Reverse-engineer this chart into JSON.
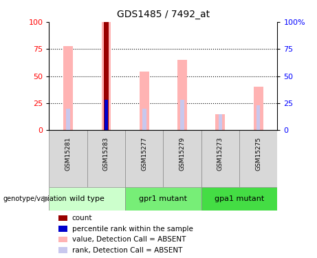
{
  "title": "GDS1485 / 7492_at",
  "samples": [
    "GSM15281",
    "GSM15283",
    "GSM15277",
    "GSM15279",
    "GSM15273",
    "GSM15275"
  ],
  "group_data": [
    {
      "name": "wild type",
      "indices": [
        0,
        1
      ],
      "color": "#ccffcc"
    },
    {
      "name": "gpr1 mutant",
      "indices": [
        2,
        3
      ],
      "color": "#66ff66"
    },
    {
      "name": "gpa1 mutant",
      "indices": [
        4,
        5
      ],
      "color": "#55ee55"
    }
  ],
  "value_bars": [
    78,
    100,
    54,
    65,
    15,
    40
  ],
  "rank_bars": [
    20,
    28,
    20,
    28,
    15,
    23
  ],
  "count_bar_idx": 1,
  "count_bar_value": 100,
  "percentile_rank_value": 28,
  "value_bar_color": "#ffb3b3",
  "rank_bar_color": "#c8c8ee",
  "count_color": "#990000",
  "percentile_color": "#0000cc",
  "ylim": [
    0,
    100
  ],
  "yticks": [
    0,
    25,
    50,
    75,
    100
  ],
  "legend_items": [
    {
      "color": "#990000",
      "label": "count"
    },
    {
      "color": "#0000cc",
      "label": "percentile rank within the sample"
    },
    {
      "color": "#ffb3b3",
      "label": "value, Detection Call = ABSENT"
    },
    {
      "color": "#c8c8ee",
      "label": "rank, Detection Call = ABSENT"
    }
  ]
}
